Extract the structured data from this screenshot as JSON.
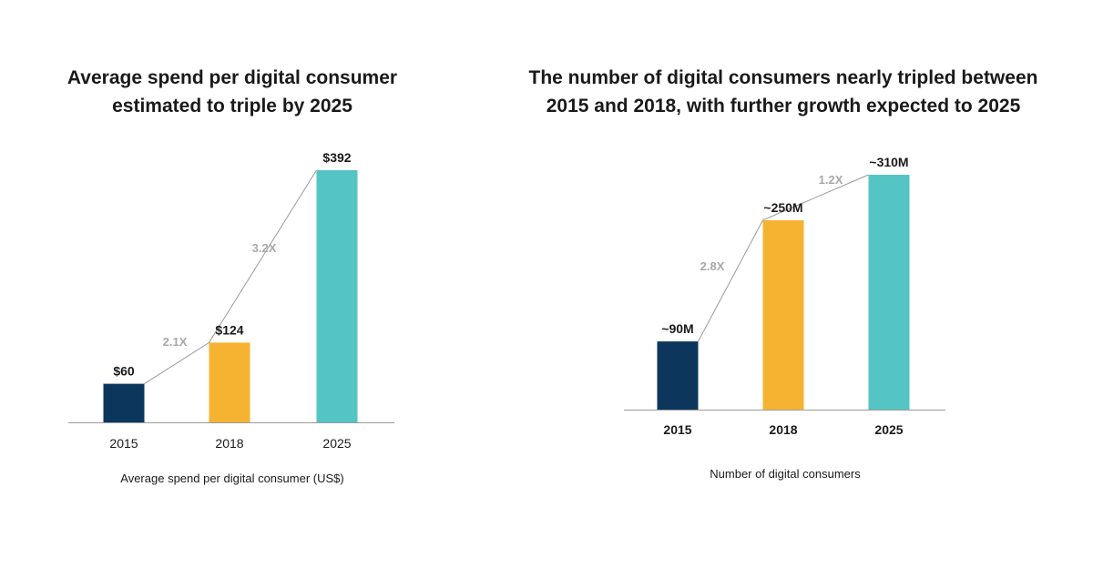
{
  "colors": {
    "2015": "#0d365c",
    "2018": "#f6b332",
    "2025": "#54c4c5",
    "axis": "#9a9a9a",
    "connector": "#9a9a9a",
    "multiplier_text": "#a8a8a8"
  },
  "chart_data": [
    {
      "type": "bar",
      "title": "Average spend per digital consumer estimated to triple by 2025",
      "title_lines": [
        "Average spend per digital consumer",
        "estimated to triple by 2025"
      ],
      "categories": [
        "2015",
        "2018",
        "2025"
      ],
      "values": [
        60,
        124,
        392
      ],
      "value_labels": [
        "$60",
        "$124",
        "$392"
      ],
      "multipliers": [
        "2.1X",
        "3.2X"
      ],
      "xlabel": "Average spend per digital consumer (US$)",
      "ylabel": "",
      "ylim": [
        0,
        392
      ],
      "grid": false
    },
    {
      "type": "bar",
      "title": "The number of digital consumers nearly tripled between 2015 and 2018, with further growth expected to 2025",
      "title_lines": [
        "The number of digital consumers nearly tripled between",
        "2015 and 2018, with further growth expected to 2025"
      ],
      "categories": [
        "2015",
        "2018",
        "2025"
      ],
      "values": [
        90,
        250,
        310
      ],
      "value_labels": [
        "~90M",
        "~250M",
        "~310M"
      ],
      "multipliers": [
        "2.8X",
        "1.2X"
      ],
      "xlabel": "Number of digital consumers",
      "ylabel": "",
      "ylim": [
        0,
        310
      ],
      "grid": false
    }
  ]
}
